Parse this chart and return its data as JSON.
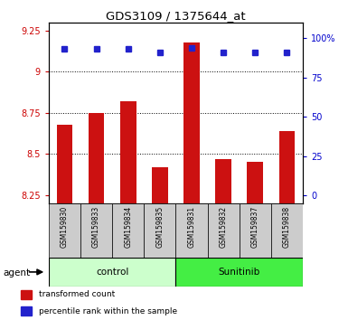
{
  "title": "GDS3109 / 1375644_at",
  "samples": [
    "GSM159830",
    "GSM159833",
    "GSM159834",
    "GSM159835",
    "GSM159831",
    "GSM159832",
    "GSM159837",
    "GSM159838"
  ],
  "bar_values": [
    8.68,
    8.75,
    8.82,
    8.42,
    9.18,
    8.47,
    8.45,
    8.64
  ],
  "dot_values": [
    93,
    93,
    93,
    91,
    94,
    91,
    91,
    91
  ],
  "ylim_left": [
    8.2,
    9.3
  ],
  "ylim_right": [
    -5,
    110
  ],
  "yticks_left": [
    8.25,
    8.5,
    8.75,
    9.0,
    9.25
  ],
  "ytick_labels_left": [
    "8.25",
    "8.5",
    "8.75",
    "9",
    "9.25"
  ],
  "yticks_right": [
    0,
    25,
    50,
    75,
    100
  ],
  "ytick_labels_right": [
    "0",
    "25",
    "50",
    "75",
    "100%"
  ],
  "grid_lines": [
    9.0,
    8.75,
    8.5
  ],
  "bar_color": "#CC1111",
  "dot_color": "#2222CC",
  "groups": [
    {
      "label": "control",
      "indices": [
        0,
        1,
        2,
        3
      ],
      "color": "#CCFFCC"
    },
    {
      "label": "Sunitinib",
      "indices": [
        4,
        5,
        6,
        7
      ],
      "color": "#44EE44"
    }
  ],
  "agent_label": "agent",
  "sample_bg_color": "#CCCCCC",
  "bar_width": 0.5,
  "legend_items": [
    {
      "label": "transformed count",
      "color": "#CC1111"
    },
    {
      "label": "percentile rank within the sample",
      "color": "#2222CC"
    }
  ]
}
